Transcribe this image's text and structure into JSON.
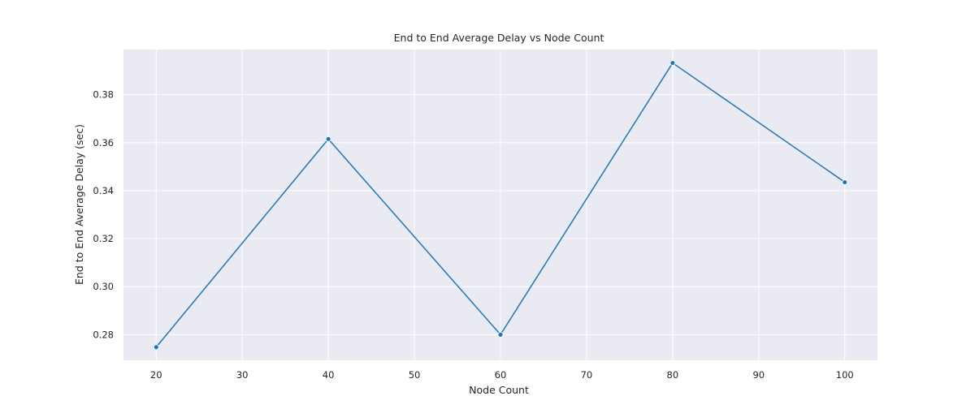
{
  "chart_data": {
    "type": "line",
    "title": "End to End Average Delay vs Node Count",
    "xlabel": "Node Count",
    "ylabel": "End to End Average Delay (sec)",
    "x": [
      20,
      40,
      60,
      80,
      100
    ],
    "series": [
      {
        "values": [
          0.2748,
          0.3615,
          0.28,
          0.3932,
          0.3435
        ]
      }
    ],
    "xlim": [
      16.2,
      103.8
    ],
    "ylim": [
      0.2693,
      0.3988
    ],
    "xticks": [
      20,
      30,
      40,
      50,
      60,
      70,
      80,
      90,
      100
    ],
    "yticks": [
      0.28,
      0.3,
      0.32,
      0.34,
      0.36,
      0.38
    ],
    "grid": true,
    "legend": "none",
    "colors": {
      "line": "#1f77b4",
      "plot_background": "#eaeaf2",
      "grid": "#ffffff",
      "text": "#262626"
    }
  }
}
